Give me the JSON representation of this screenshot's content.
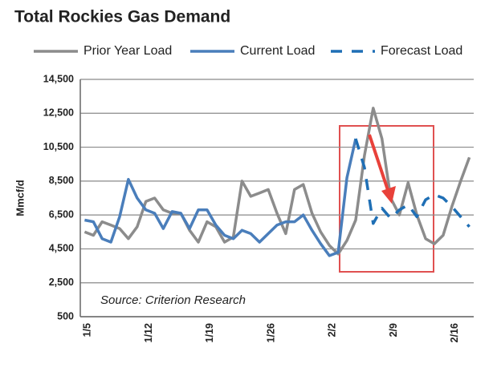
{
  "chart_data": {
    "type": "line",
    "title": "Total Rockies Gas Demand",
    "y_label": "Mmcf/d",
    "annotation": "Source:  Criterion Research",
    "categories": [
      "1/5",
      null,
      null,
      null,
      null,
      null,
      null,
      "1/12",
      null,
      null,
      null,
      null,
      null,
      null,
      "1/19",
      null,
      null,
      null,
      null,
      null,
      null,
      "1/26",
      null,
      null,
      null,
      null,
      null,
      null,
      "2/2",
      null,
      null,
      null,
      null,
      null,
      null,
      "2/9",
      null,
      null,
      null,
      null,
      null,
      null,
      "2/16",
      null,
      null
    ],
    "series": [
      {
        "name": "Prior Year Load",
        "color": "#8c8c8c",
        "dash": false,
        "values": [
          5500,
          5300,
          6100,
          5900,
          5700,
          5100,
          5800,
          7300,
          7500,
          6800,
          6600,
          6600,
          5600,
          4900,
          6100,
          5800,
          4900,
          5200,
          8500,
          7600,
          7800,
          8000,
          6600,
          5400,
          8000,
          8300,
          6600,
          5500,
          4700,
          4200,
          5000,
          6200,
          10000,
          12800,
          11000,
          7500,
          6500,
          8400,
          6500,
          5100,
          4800,
          5300,
          7000,
          8500,
          9900
        ]
      },
      {
        "name": "Current Load",
        "color": "#4a7ebb",
        "dash": false,
        "values": [
          6200,
          6100,
          5100,
          4900,
          6400,
          8600,
          7500,
          6800,
          6600,
          5700,
          6700,
          6600,
          5700,
          6800,
          6800,
          5900,
          5300,
          5100,
          5600,
          5400,
          4900,
          5400,
          5900,
          6100,
          6100,
          6500,
          5600,
          4800,
          4100,
          4300,
          8700,
          11000,
          null,
          null,
          null,
          null,
          null,
          null,
          null,
          null,
          null,
          null,
          null,
          null,
          null
        ]
      },
      {
        "name": "Forecast Load",
        "color": "#1f6fb5",
        "dash": true,
        "values": [
          null,
          null,
          null,
          null,
          null,
          null,
          null,
          null,
          null,
          null,
          null,
          null,
          null,
          null,
          null,
          null,
          null,
          null,
          null,
          null,
          null,
          null,
          null,
          null,
          null,
          null,
          null,
          null,
          null,
          null,
          null,
          11000,
          9300,
          6000,
          6900,
          6300,
          6800,
          7100,
          6400,
          7400,
          7700,
          7500,
          7000,
          6400,
          5800
        ]
      }
    ],
    "ylim": [
      500,
      14500
    ],
    "yticks": [
      {
        "value": 500,
        "label": "500"
      },
      {
        "value": 2500,
        "label": "2,500"
      },
      {
        "value": 4500,
        "label": "4,500"
      },
      {
        "value": 6500,
        "label": "6,500"
      },
      {
        "value": 8500,
        "label": "8,500"
      },
      {
        "value": 10500,
        "label": "10,500"
      },
      {
        "value": 12500,
        "label": "12,500"
      },
      {
        "value": 14500,
        "label": "14,500"
      }
    ],
    "grid": true
  }
}
